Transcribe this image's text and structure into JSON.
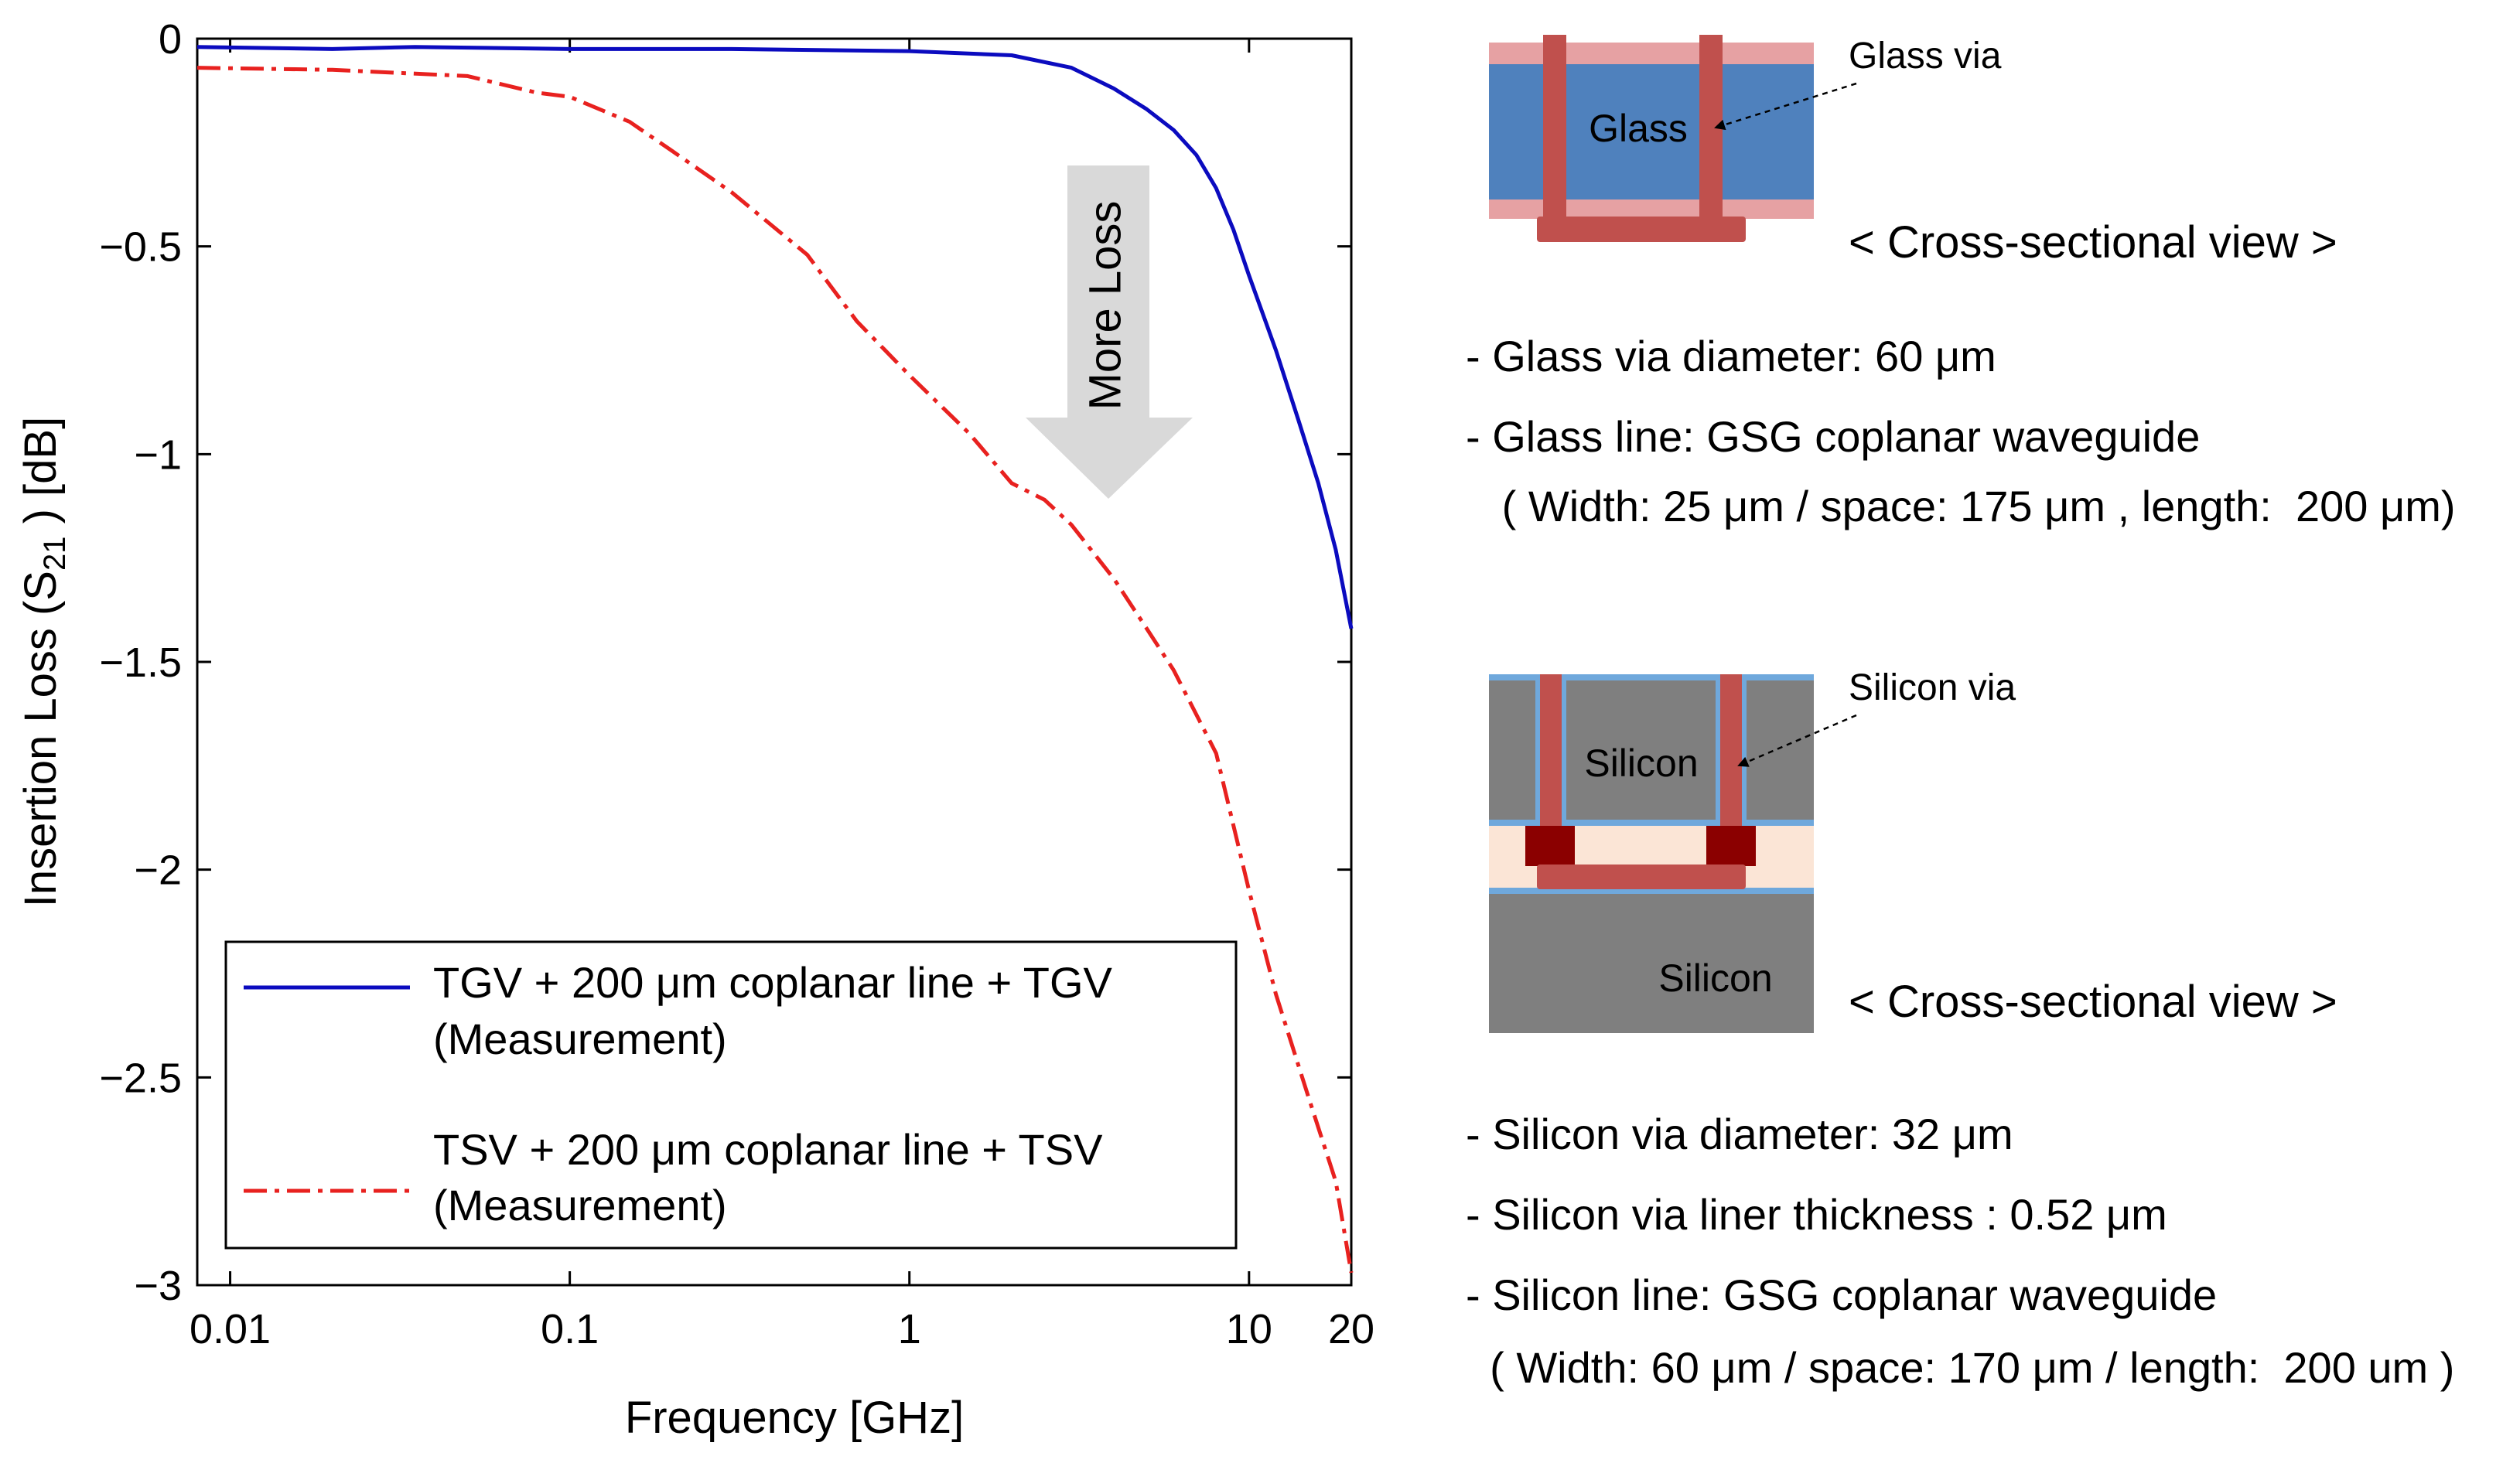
{
  "chart_data": {
    "type": "line",
    "xlabel": "Frequency [GHz]",
    "ylabel": {
      "main": "Insertion Loss (S",
      "sub": "21",
      "tail": " ) [dB]"
    },
    "xscale": "log",
    "xlim": [
      0.008,
      20
    ],
    "ylim": [
      -3,
      0
    ],
    "xticks": [
      {
        "value": 0.01,
        "label": "0.01"
      },
      {
        "value": 0.1,
        "label": "0.1"
      },
      {
        "value": 1,
        "label": "1"
      },
      {
        "value": 10,
        "label": "10"
      },
      {
        "value": 20,
        "label": "20"
      }
    ],
    "yticks": [
      {
        "value": 0,
        "label": "0"
      },
      {
        "value": -0.5,
        "label": "−0.5"
      },
      {
        "value": -1,
        "label": "−1"
      },
      {
        "value": -1.5,
        "label": "−1.5"
      },
      {
        "value": -2,
        "label": "−2"
      },
      {
        "value": -2.5,
        "label": "−2.5"
      },
      {
        "value": -3,
        "label": "−3"
      }
    ],
    "grid": false,
    "legend_position": "bottom-left",
    "series": [
      {
        "name": "TGV + 200 μm coplanar line + TGV",
        "name_line2": "(Measurement)",
        "color": "#0b0bbf",
        "style": "solid",
        "x": [
          0.008,
          0.02,
          0.035,
          0.1,
          0.3,
          1,
          2,
          3,
          4,
          5,
          6,
          7,
          8,
          9,
          10,
          12,
          14,
          16,
          18,
          20
        ],
        "y": [
          -0.02,
          -0.025,
          -0.02,
          -0.025,
          -0.025,
          -0.03,
          -0.04,
          -0.07,
          -0.12,
          -0.17,
          -0.22,
          -0.28,
          -0.36,
          -0.46,
          -0.57,
          -0.75,
          -0.92,
          -1.07,
          -1.23,
          -1.42
        ]
      },
      {
        "name": "TSV + 200 μm coplanar line + TSV",
        "name_line2": "(Measurement)",
        "color": "#e8211f",
        "style": "dashdot",
        "x": [
          0.008,
          0.02,
          0.05,
          0.08,
          0.1,
          0.15,
          0.2,
          0.3,
          0.5,
          0.7,
          1,
          1.5,
          2,
          2.5,
          3,
          4,
          5,
          6,
          8,
          10,
          12,
          15,
          18,
          20
        ],
        "y": [
          -0.07,
          -0.075,
          -0.09,
          -0.13,
          -0.14,
          -0.2,
          -0.27,
          -0.37,
          -0.52,
          -0.68,
          -0.81,
          -0.95,
          -1.07,
          -1.11,
          -1.17,
          -1.3,
          -1.42,
          -1.52,
          -1.72,
          -2.05,
          -2.3,
          -2.55,
          -2.75,
          -2.97
        ]
      }
    ],
    "annotation": {
      "text": "More Loss",
      "color": "#d9d9d9"
    }
  },
  "diagram_glass": {
    "material_label": "Glass",
    "via_label": "Glass via",
    "view_caption": "< Cross-sectional view >",
    "colors": {
      "core": "#4f81bd",
      "liner": "#e6a1a3",
      "via": "#c0504d",
      "text": "#ffffff"
    }
  },
  "diagram_silicon": {
    "material_label_top": "Silicon",
    "material_label_bottom": "Silicon",
    "via_label": "Silicon via",
    "view_caption": "< Cross-sectional view >",
    "colors": {
      "silicon": "#7f7f7f",
      "liner": "#6fa8dc",
      "via": "#c0504d",
      "pad": "#8b0000",
      "bond": "#fbe5d6"
    }
  },
  "specs_glass": [
    "- Glass via diameter: 60 μm",
    "- Glass line: GSG coplanar waveguide",
    "   ( Width: 25 μm / space: 175 μm , length:  200 μm)"
  ],
  "specs_silicon": [
    "- Silicon via diameter: 32 μm",
    "- Silicon via liner thickness : 0.52 μm",
    "- Silicon line: GSG coplanar waveguide",
    "  ( Width: 60 μm / space: 170 μm / length:  200 um )"
  ]
}
